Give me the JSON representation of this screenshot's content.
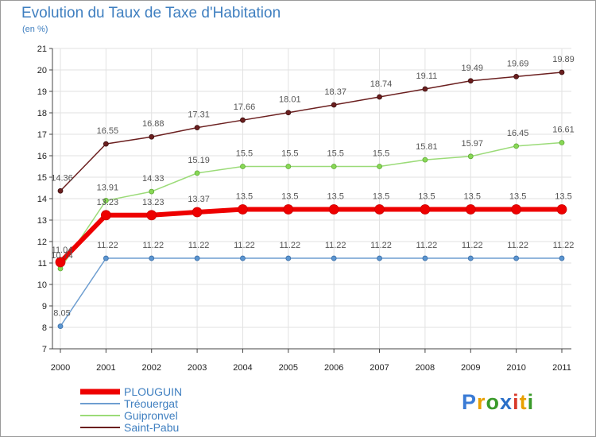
{
  "title": "Evolution du Taux de Taxe d'Habitation",
  "subtitle": "(en %)",
  "logo": {
    "letters": [
      {
        "ch": "P",
        "color": "#3a7bd5"
      },
      {
        "ch": "r",
        "color": "#e8a000"
      },
      {
        "ch": "o",
        "color": "#3a9a2a"
      },
      {
        "ch": "x",
        "color": "#2a6fc8"
      },
      {
        "ch": "i",
        "color": "#d83a2a"
      },
      {
        "ch": "t",
        "color": "#e8a000"
      },
      {
        "ch": "i",
        "color": "#3a9a2a"
      }
    ]
  },
  "chart_data": {
    "type": "line",
    "x": [
      "2000",
      "2001",
      "2002",
      "2003",
      "2004",
      "2005",
      "2006",
      "2007",
      "2008",
      "2009",
      "2010",
      "2011"
    ],
    "ylim": [
      7,
      21
    ],
    "yticks": [
      "7",
      "8",
      "9",
      "10",
      "11",
      "12",
      "13",
      "14",
      "15",
      "16",
      "17",
      "18",
      "19",
      "20",
      "21"
    ],
    "grid": true,
    "legend_position": "bottom-left",
    "series": [
      {
        "name": "Saint-Pabu",
        "color": "#6b1f1f",
        "values": [
          14.36,
          16.55,
          16.88,
          17.31,
          17.66,
          18.01,
          18.37,
          18.74,
          19.11,
          19.49,
          19.69,
          19.89
        ],
        "labels": [
          "14.36",
          "16.55",
          "16.88",
          "17.31",
          "17.66",
          "18.01",
          "18.37",
          "18.74",
          "19.11",
          "19.49",
          "19.69",
          "19.89"
        ]
      },
      {
        "name": "Guipronvel",
        "color": "#9bdb78",
        "values": [
          10.74,
          13.91,
          14.33,
          15.19,
          15.5,
          15.5,
          15.5,
          15.5,
          15.81,
          15.97,
          16.45,
          16.61
        ],
        "labels": [
          "10.74",
          "13.91",
          "14.33",
          "15.19",
          "15.5",
          "15.5",
          "15.5",
          "15.5",
          "15.81",
          "15.97",
          "16.45",
          "16.61"
        ]
      },
      {
        "name": "Tréouergat",
        "color": "#6e9ed0",
        "values": [
          8.05,
          11.22,
          11.22,
          11.22,
          11.22,
          11.22,
          11.22,
          11.22,
          11.22,
          11.22,
          11.22,
          11.22
        ],
        "labels": [
          "8.05",
          "11.22",
          "11.22",
          "11.22",
          "11.22",
          "11.22",
          "11.22",
          "11.22",
          "11.22",
          "11.22",
          "11.22",
          "11.22"
        ]
      },
      {
        "name": "PLOUGUIN",
        "color": "#ee0000",
        "values": [
          11.04,
          13.23,
          13.23,
          13.37,
          13.5,
          13.5,
          13.5,
          13.5,
          13.5,
          13.5,
          13.5,
          13.5
        ],
        "labels": [
          "11.04",
          "13.23",
          "13.23",
          "13.37",
          "13.5",
          "13.5",
          "13.5",
          "13.5",
          "13.5",
          "13.5",
          "13.5",
          "13.5"
        ]
      }
    ],
    "legend": [
      "PLOUGUIN",
      "Tréouergat",
      "Guipronvel",
      "Saint-Pabu"
    ]
  }
}
